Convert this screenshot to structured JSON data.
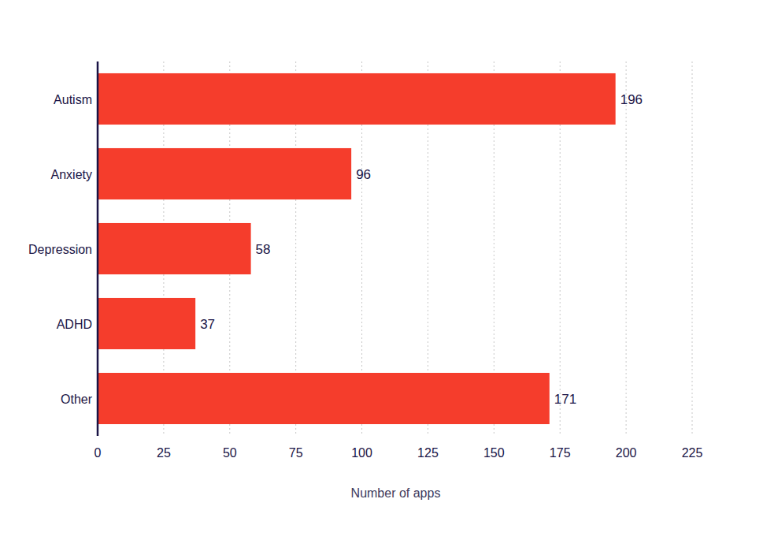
{
  "chart_data": {
    "type": "bar",
    "orientation": "horizontal",
    "x_label": "Number of apps",
    "categories": [
      "Autism",
      "Anxiety",
      "Depression",
      "ADHD",
      "Other"
    ],
    "values": [
      196,
      96,
      58,
      37,
      171
    ],
    "color": "#f53d2c",
    "xlim": [
      0,
      225
    ],
    "xticks": [
      0,
      25,
      50,
      75,
      100,
      125,
      150,
      175,
      200,
      225
    ],
    "grid": true,
    "data_labels": true
  }
}
